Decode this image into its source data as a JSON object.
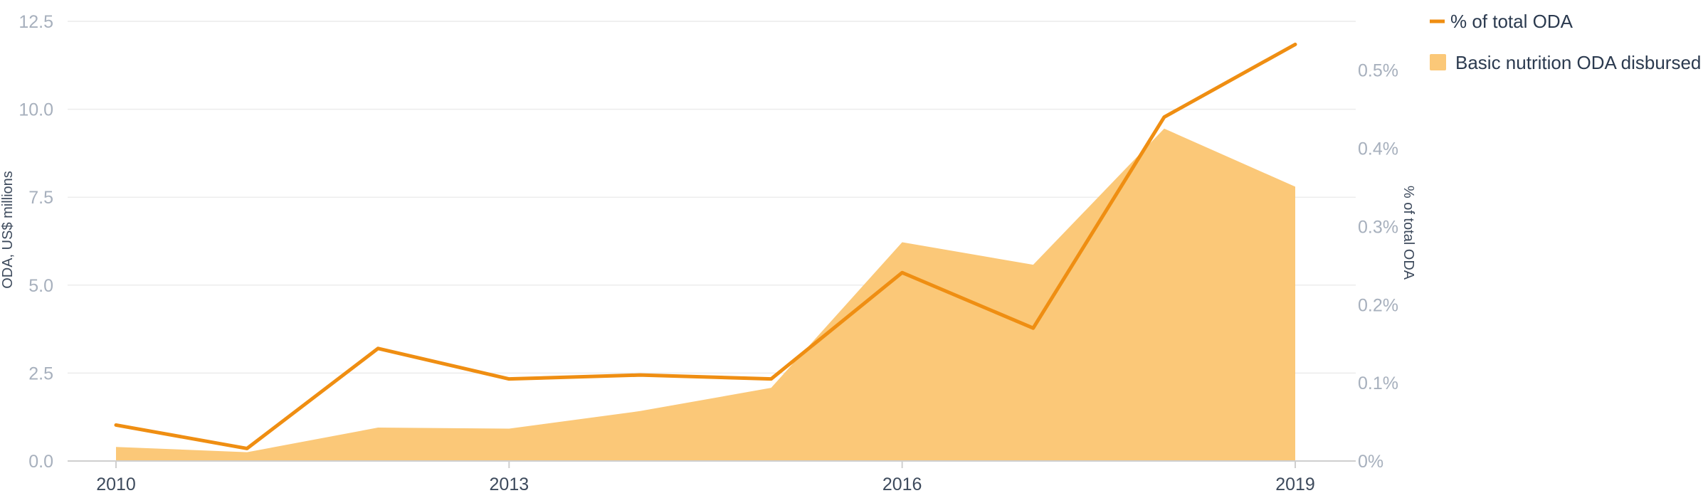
{
  "chart_data": {
    "type": "line",
    "x": [
      2010,
      2011,
      2012,
      2013,
      2014,
      2015,
      2016,
      2017,
      2018,
      2019
    ],
    "x_ticks": [
      "2010",
      "2013",
      "2016",
      "2019"
    ],
    "series": [
      {
        "name": "Basic nutrition ODA disbursed",
        "kind": "area",
        "axis": "left",
        "color": "#fbc878",
        "values": [
          0.4,
          0.25,
          0.95,
          0.92,
          1.42,
          2.08,
          6.22,
          5.58,
          9.45,
          7.8
        ]
      },
      {
        "name": "% of total ODA",
        "kind": "line",
        "axis": "right",
        "color": "#ef8e12",
        "values": [
          0.046,
          0.016,
          0.144,
          0.105,
          0.11,
          0.105,
          0.241,
          0.17,
          0.44,
          0.533
        ]
      }
    ],
    "y_left": {
      "label": "ODA, US$ millions",
      "lim": [
        0,
        12.5
      ],
      "ticks": [
        "0.0",
        "2.5",
        "5.0",
        "7.5",
        "10.0",
        "12.5"
      ]
    },
    "y_right": {
      "label": "% of total ODA",
      "lim": [
        0,
        0.5625
      ],
      "ticks": [
        "0%",
        "0.1%",
        "0.2%",
        "0.3%",
        "0.4%",
        "0.5%"
      ]
    },
    "grid": true,
    "legend": {
      "placement": "top-right",
      "items": [
        {
          "label": "% of total ODA",
          "marker": "line"
        },
        {
          "label": "Basic nutrition ODA disbursed",
          "marker": "square"
        }
      ]
    }
  }
}
